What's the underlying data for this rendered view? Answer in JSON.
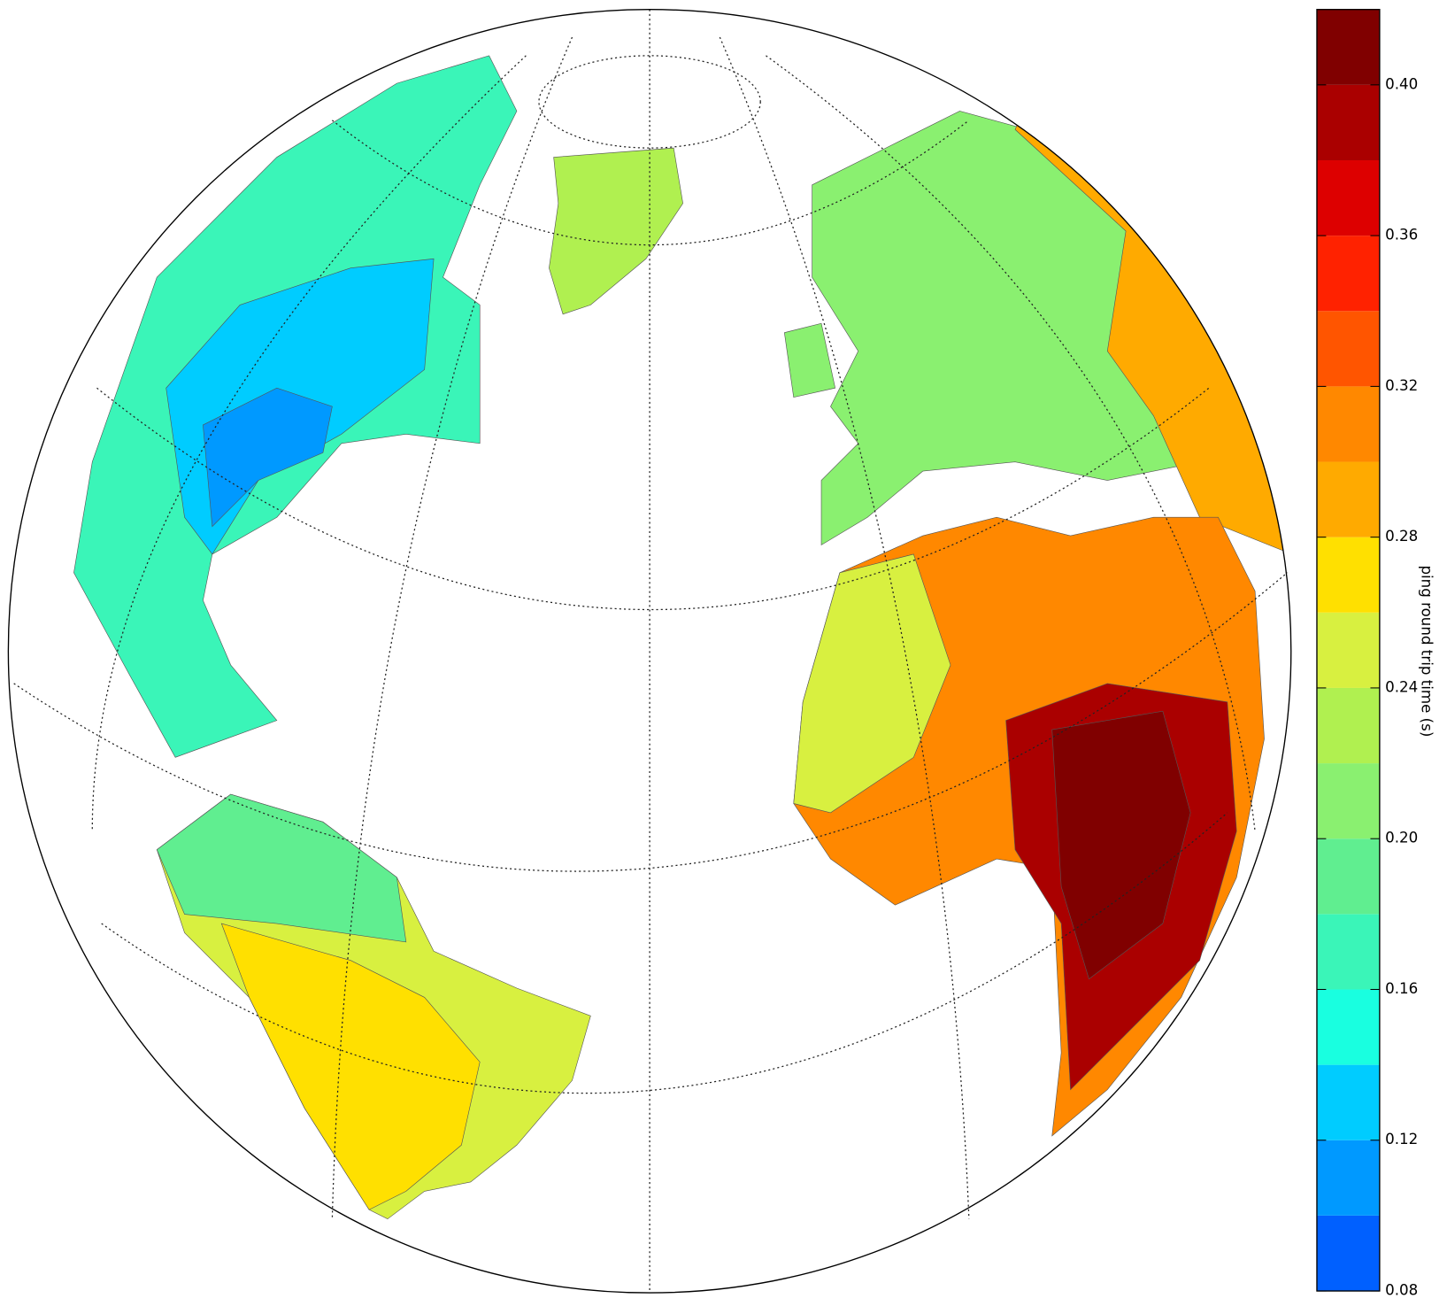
{
  "chart_data": {
    "type": "colormap",
    "colorbar": {
      "label": "ping round trip time (s)",
      "lim": [
        0.08,
        0.42
      ],
      "levels": [
        0.08,
        0.1,
        0.12,
        0.14,
        0.16,
        0.18,
        0.2,
        0.22,
        0.24,
        0.26,
        0.28,
        0.3,
        0.32,
        0.34,
        0.36,
        0.38,
        0.4,
        0.42
      ],
      "colors": [
        "#0060ff",
        "#0099ff",
        "#00ccff",
        "#19ffe0",
        "#3af5b8",
        "#60ee90",
        "#8af070",
        "#b0f050",
        "#d8f040",
        "#ffe000",
        "#ffaa00",
        "#ff8800",
        "#ff5500",
        "#ff2200",
        "#dd0000",
        "#aa0000",
        "#800000"
      ],
      "ticks": [
        0.08,
        0.12,
        0.16,
        {
          "value": 0.2,
          "label": "0.20"
        },
        0.24,
        0.28,
        0.32,
        0.36,
        {
          "value": 0.4,
          "label": "0.40"
        }
      ]
    }
  }
}
